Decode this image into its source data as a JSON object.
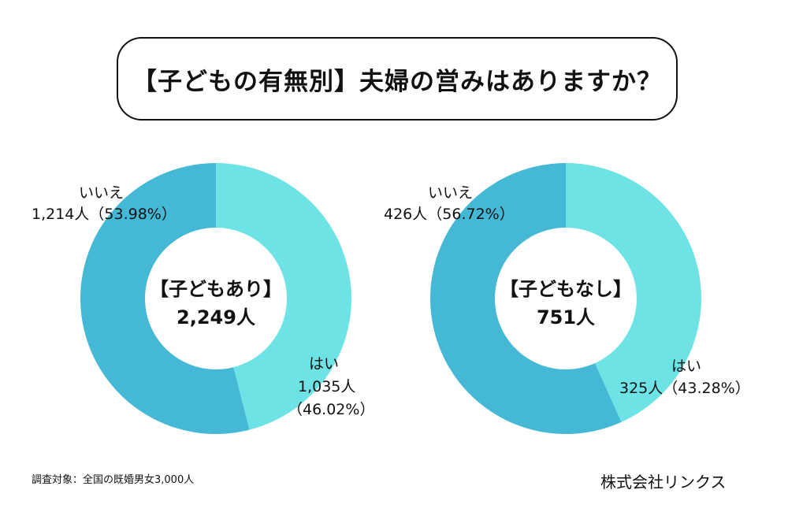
{
  "title": "【子どもの有無別】夫婦の営みはありますか？",
  "colors": {
    "yes": "#6ee3e6",
    "no": "#44b8d4"
  },
  "chart_data": [
    {
      "type": "pie",
      "center_label": "【子どもあり】",
      "center_total": "2,249人",
      "slices": [
        {
          "name": "はい",
          "count": 1035,
          "percent": 46.02,
          "count_label": "1,035人",
          "percent_label": "（46.02%）"
        },
        {
          "name": "いいえ",
          "count": 1214,
          "percent": 53.98,
          "count_label": "1,214人",
          "percent_label": "（53.98%）"
        }
      ]
    },
    {
      "type": "pie",
      "center_label": "【子どもなし】",
      "center_total": "751人",
      "slices": [
        {
          "name": "はい",
          "count": 325,
          "percent": 43.28,
          "count_label": "325人",
          "percent_label": "（43.28%）"
        },
        {
          "name": "いいえ",
          "count": 426,
          "percent": 56.72,
          "count_label": "426人",
          "percent_label": "（56.72%）"
        }
      ]
    }
  ],
  "footer": {
    "survey": "調査対象：全国の既婚男女3,000人",
    "company": "株式会社リンクス"
  }
}
